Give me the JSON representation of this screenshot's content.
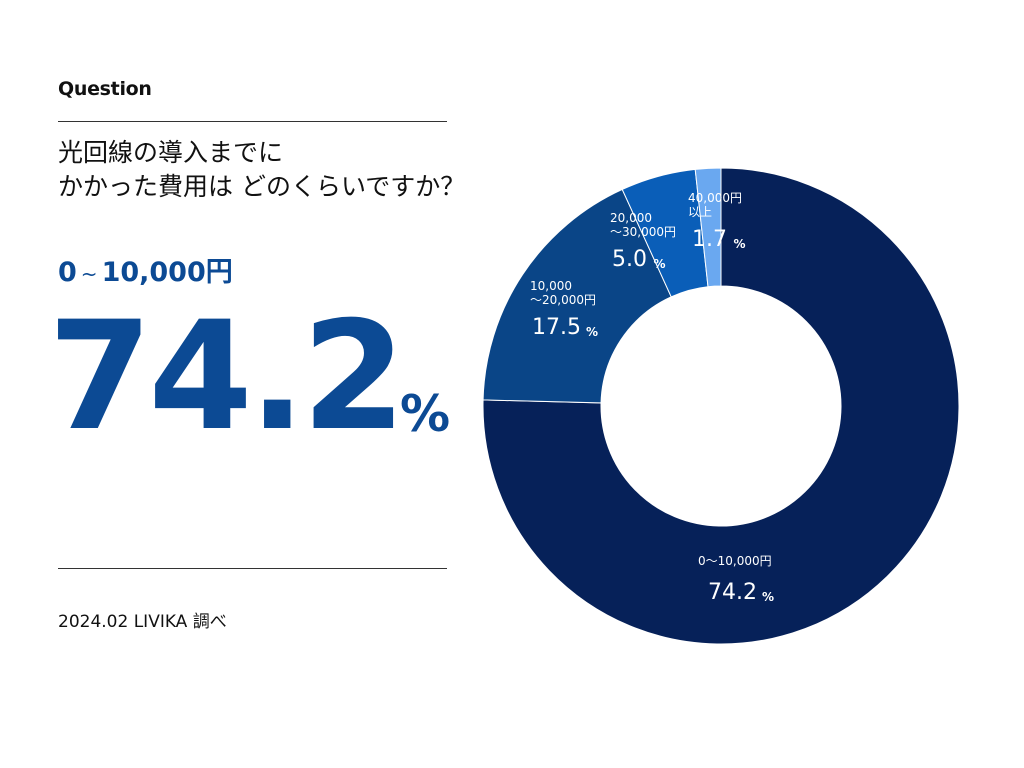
{
  "header": {
    "label": "Question",
    "question_line1": "光回線の導入までに",
    "question_line2": "かかった費用は どのくらいですか？"
  },
  "highlight": {
    "range_start": "0",
    "range_tilde": "~",
    "range_end": "10,000円",
    "value": "74.2",
    "unit": "%"
  },
  "footer": {
    "source": "2024.02 LIVIKA 調べ"
  },
  "colors": {
    "slice_0": "#062159",
    "slice_1": "#0a4587",
    "slice_2": "#0a5eb8",
    "slice_3": "#6aa8f0",
    "accent": "#0c4a94"
  },
  "chart_data": {
    "type": "pie",
    "donut": true,
    "categories": [
      "0〜10,000円",
      "10,000〜20,000円",
      "20,000〜30,000円",
      "40,000円以上"
    ],
    "values": [
      74.2,
      17.5,
      5.0,
      1.7
    ],
    "labels": [
      {
        "lines": [
          "0〜10,000円"
        ],
        "value": "74.2",
        "unit": "%"
      },
      {
        "lines": [
          "10,000",
          "〜20,000円"
        ],
        "value": "17.5",
        "unit": "%"
      },
      {
        "lines": [
          "20,000",
          "〜30,000円"
        ],
        "value": "5.0",
        "unit": "%"
      },
      {
        "lines": [
          "40,000円",
          "以上"
        ],
        "value": "1.7",
        "unit": "%"
      }
    ]
  }
}
